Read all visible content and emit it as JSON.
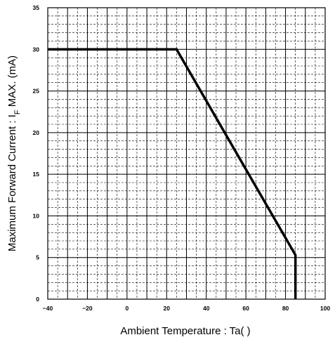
{
  "chart_data": {
    "type": "line",
    "xlabel": "Ambient Temperature : Ta(   )",
    "ylabel_main": "Maximum Forward Current : I",
    "ylabel_sub": "F",
    "ylabel_tail": " MAX. (mA)",
    "xlim": [
      -40,
      100
    ],
    "ylim": [
      0,
      35
    ],
    "x_ticks": [
      -40,
      -20,
      0,
      20,
      40,
      60,
      80,
      100
    ],
    "y_ticks": [
      0,
      5,
      10,
      15,
      20,
      25,
      30,
      35
    ],
    "x_tick_labels": [
      "−40",
      "−20",
      "0",
      "20",
      "40",
      "60",
      "80",
      "100"
    ],
    "y_tick_labels": [
      "0",
      "5",
      "10",
      "15",
      "20",
      "25",
      "30",
      "35"
    ],
    "grid": true,
    "series": [
      {
        "points": [
          [
            -40,
            30
          ],
          [
            25,
            30
          ],
          [
            85,
            5.3
          ],
          [
            85,
            0
          ]
        ],
        "color": "#000000"
      }
    ]
  }
}
